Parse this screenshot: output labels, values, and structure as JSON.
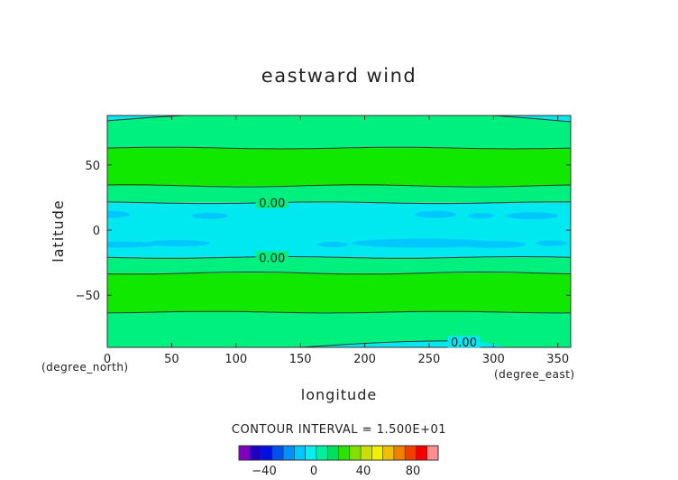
{
  "chart_data": {
    "type": "contour",
    "title": "eastward wind",
    "xlabel": "longitude",
    "ylabel": "latitude",
    "x_unit": "(degree_east)",
    "y_unit": "(degree_north)",
    "xlim": [
      0,
      360
    ],
    "ylim": [
      -90,
      90
    ],
    "x_ticks": [
      0,
      50,
      100,
      150,
      200,
      250,
      300,
      350
    ],
    "y_ticks": [
      -50,
      0,
      50
    ],
    "contour_interval_text": "CONTOUR INTERVAL = 1.500E+01",
    "contour_labels": [
      {
        "text": "0.00",
        "lon": 128,
        "lat": 21
      },
      {
        "text": "0.00",
        "lon": 128,
        "lat": -21
      },
      {
        "text": "0.00",
        "lon": 277,
        "lat": -86
      }
    ],
    "bands": [
      {
        "from_lat": 63,
        "to_lat": 88,
        "color": "#00f080"
      },
      {
        "from_lat": 34,
        "to_lat": 63,
        "color": "#10e800"
      },
      {
        "from_lat": 21,
        "to_lat": 34,
        "color": "#00f080"
      },
      {
        "from_lat": -21,
        "to_lat": 21,
        "color": "#00e8f0"
      },
      {
        "from_lat": -33,
        "to_lat": -21,
        "color": "#00f080"
      },
      {
        "from_lat": -63,
        "to_lat": -33,
        "color": "#10e800"
      },
      {
        "from_lat": -90,
        "to_lat": -63,
        "color": "#00f080"
      }
    ],
    "contours": [
      {
        "lat": 63,
        "amp": 0.6
      },
      {
        "lat": 34,
        "amp": 0.8
      },
      {
        "lat": 21,
        "amp": 0.6
      },
      {
        "lat": -21,
        "amp": 0.6
      },
      {
        "lat": -33,
        "amp": 0.8
      },
      {
        "lat": -63,
        "amp": 0.6
      }
    ],
    "colorbar": {
      "colors": [
        "#8000c0",
        "#2000c0",
        "#0010e0",
        "#0050f0",
        "#0090ff",
        "#00c8ff",
        "#00f0f0",
        "#00f0a0",
        "#00e060",
        "#30e000",
        "#80e000",
        "#c8e000",
        "#f0f000",
        "#f0c000",
        "#f08000",
        "#f04000",
        "#f00000",
        "#ff9090"
      ],
      "tick_labels": [
        "−40",
        "0",
        "40",
        "80"
      ]
    }
  }
}
